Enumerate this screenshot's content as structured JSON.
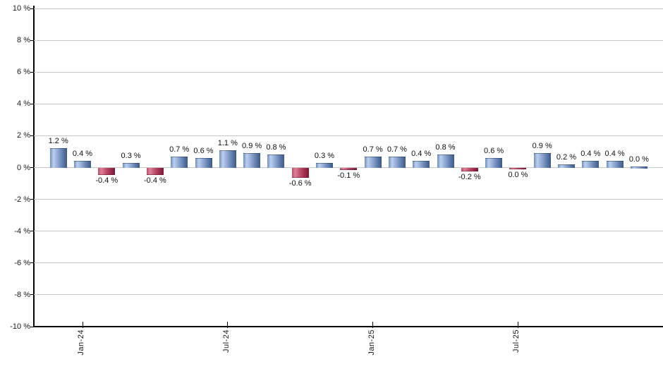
{
  "chart_data": {
    "type": "bar",
    "title": "",
    "xlabel": "",
    "ylabel": "",
    "unit": "%",
    "ylim": [
      -10,
      10
    ],
    "y_tick_interval": 2,
    "grid": true,
    "legend": false,
    "y_tick_labels": [
      "10 %",
      "8 %",
      "6 %",
      "4 %",
      "2 %",
      "0 %",
      "-2 %",
      "-4 %",
      "-6 %",
      "-8 %",
      "-10 %"
    ],
    "x_tick_labels": [
      "Jan-24",
      "Jul-24",
      "Jan-25",
      "Jul-25"
    ],
    "x_tick_bar_indices": [
      1,
      7,
      13,
      19
    ],
    "bars": [
      {
        "value": 1.2,
        "label": "1.2 %",
        "color": "blue"
      },
      {
        "value": 0.4,
        "label": "0.4 %",
        "color": "blue"
      },
      {
        "value": -0.4,
        "label": "-0.4 %",
        "color": "red"
      },
      {
        "value": 0.3,
        "label": "0.3 %",
        "color": "blue"
      },
      {
        "value": -0.4,
        "label": "-0.4 %",
        "color": "red"
      },
      {
        "value": 0.7,
        "label": "0.7 %",
        "color": "blue"
      },
      {
        "value": 0.6,
        "label": "0.6 %",
        "color": "blue"
      },
      {
        "value": 1.1,
        "label": "1.1 %",
        "color": "blue"
      },
      {
        "value": 0.9,
        "label": "0.9 %",
        "color": "blue"
      },
      {
        "value": 0.8,
        "label": "0.8 %",
        "color": "blue"
      },
      {
        "value": -0.6,
        "label": "-0.6 %",
        "color": "red"
      },
      {
        "value": 0.3,
        "label": "0.3 %",
        "color": "blue"
      },
      {
        "value": -0.1,
        "label": "-0.1 %",
        "color": "red"
      },
      {
        "value": 0.7,
        "label": "0.7 %",
        "color": "blue"
      },
      {
        "value": 0.7,
        "label": "0.7 %",
        "color": "blue"
      },
      {
        "value": 0.4,
        "label": "0.4 %",
        "color": "blue"
      },
      {
        "value": 0.8,
        "label": "0.8 %",
        "color": "blue"
      },
      {
        "value": -0.2,
        "label": "-0.2 %",
        "color": "red"
      },
      {
        "value": 0.6,
        "label": "0.6 %",
        "color": "blue"
      },
      {
        "value": 0.0,
        "label": "0.0 %",
        "color": "red"
      },
      {
        "value": 0.9,
        "label": "0.9 %",
        "color": "blue"
      },
      {
        "value": 0.2,
        "label": "0.2 %",
        "color": "blue"
      },
      {
        "value": 0.4,
        "label": "0.4 %",
        "color": "blue"
      },
      {
        "value": 0.4,
        "label": "0.4 %",
        "color": "blue"
      },
      {
        "value": 0.0,
        "label": "0.0 %",
        "color": "blue"
      }
    ],
    "colors": {
      "bar_positive_gradient": [
        "#6e8ec0",
        "#bccfee",
        "#8ca6d0",
        "#5b78a8",
        "#3c5a88"
      ],
      "bar_negative_gradient": [
        "#c04f6a",
        "#dd8298",
        "#c04c6a",
        "#9a2a4c",
        "#7c1835"
      ],
      "gridline": "#c6c6c6",
      "axis": "#000000",
      "label_text": "#111111"
    }
  }
}
